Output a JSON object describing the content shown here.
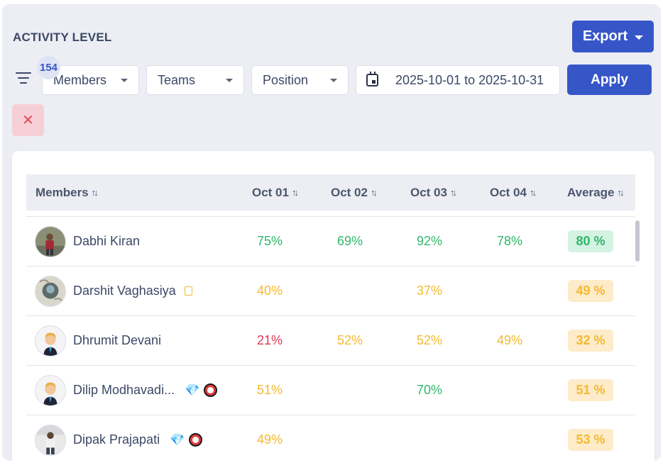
{
  "header": {
    "title": "ACTIVITY LEVEL",
    "export_label": "Export"
  },
  "filters": {
    "count": "154",
    "members_label": "Members",
    "teams_label": "Teams",
    "position_label": "Position",
    "date_range": "2025-10-01 to 2025-10-31",
    "apply_label": "Apply",
    "clear_glyph": "✕"
  },
  "table": {
    "columns": [
      "Members",
      "Oct 01",
      "Oct 02",
      "Oct 03",
      "Oct 04",
      "Average"
    ],
    "sort_glyph": "↑↓",
    "rows": [
      {
        "name": "Dabhi Kiran",
        "oct01": "75%",
        "oct02": "69%",
        "oct03": "92%",
        "oct04": "78%",
        "average": "80 %"
      },
      {
        "name": "Darshit Vaghasiya",
        "oct01": "40%",
        "oct02": "",
        "oct03": "37%",
        "oct04": "",
        "average": "49 %"
      },
      {
        "name": "Dhrumit Devani",
        "oct01": "21%",
        "oct02": "52%",
        "oct03": "52%",
        "oct04": "49%",
        "average": "32 %"
      },
      {
        "name": "Dilip Modhavadi...",
        "oct01": "51%",
        "oct02": "",
        "oct03": "70%",
        "oct04": "",
        "average": "51 %"
      },
      {
        "name": "Dipak Prajapati",
        "oct01": "49%",
        "oct02": "",
        "oct03": "",
        "oct04": "",
        "average": "53 %"
      }
    ]
  },
  "colors": {
    "primary": "#3656c8",
    "good": "#2fb96b",
    "warn": "#f5b92e",
    "bad": "#e0384e"
  },
  "icons": {
    "gem": "💎"
  }
}
